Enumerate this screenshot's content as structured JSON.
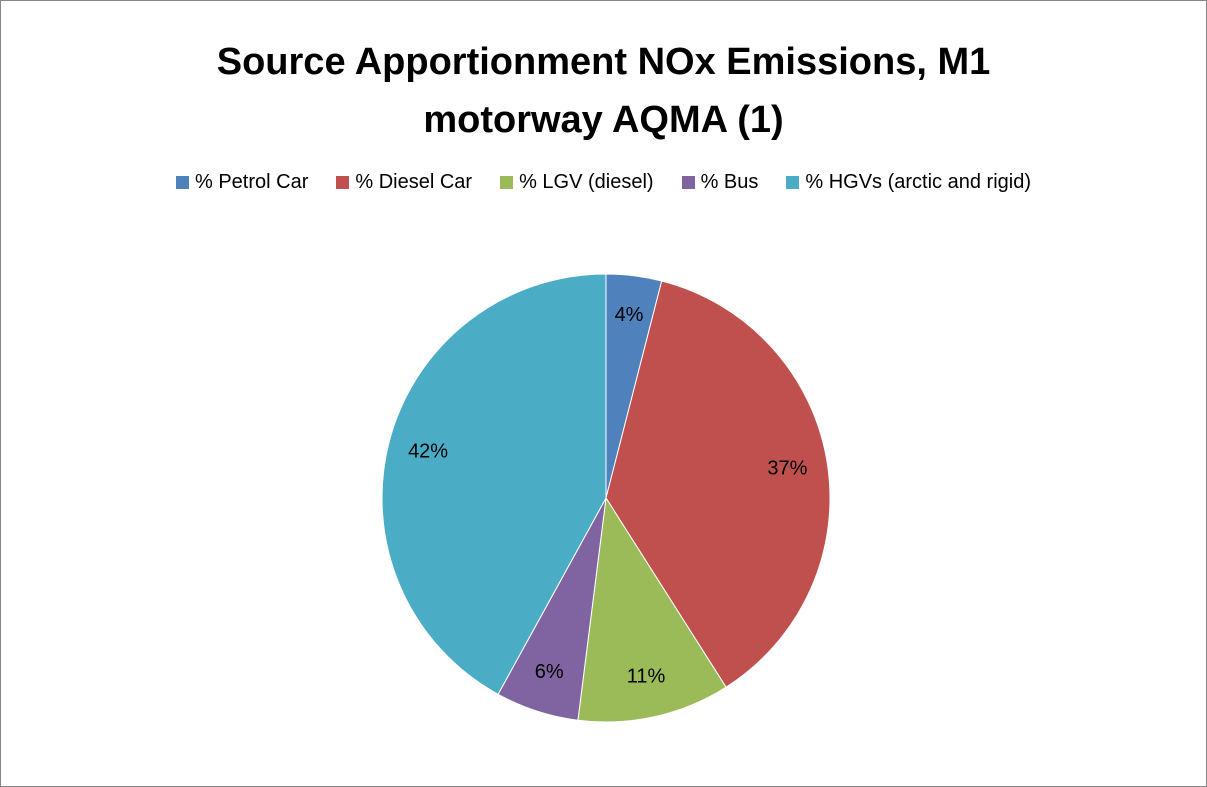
{
  "chart_data": {
    "type": "pie",
    "title": "Source Apportionment NOx Emissions, M1 motorway AQMA (1)",
    "categories": [
      "% Petrol Car",
      "% Diesel Car",
      "% LGV (diesel)",
      "% Bus",
      "% HGVs (arctic and rigid)"
    ],
    "values": [
      4,
      37,
      11,
      6,
      42
    ],
    "value_labels": [
      "4%",
      "37%",
      "11%",
      "6%",
      "42%"
    ],
    "colors": [
      "#4f81bd",
      "#c0504d",
      "#9bbb59",
      "#8064a2",
      "#4bacc6"
    ],
    "legend": "top"
  }
}
